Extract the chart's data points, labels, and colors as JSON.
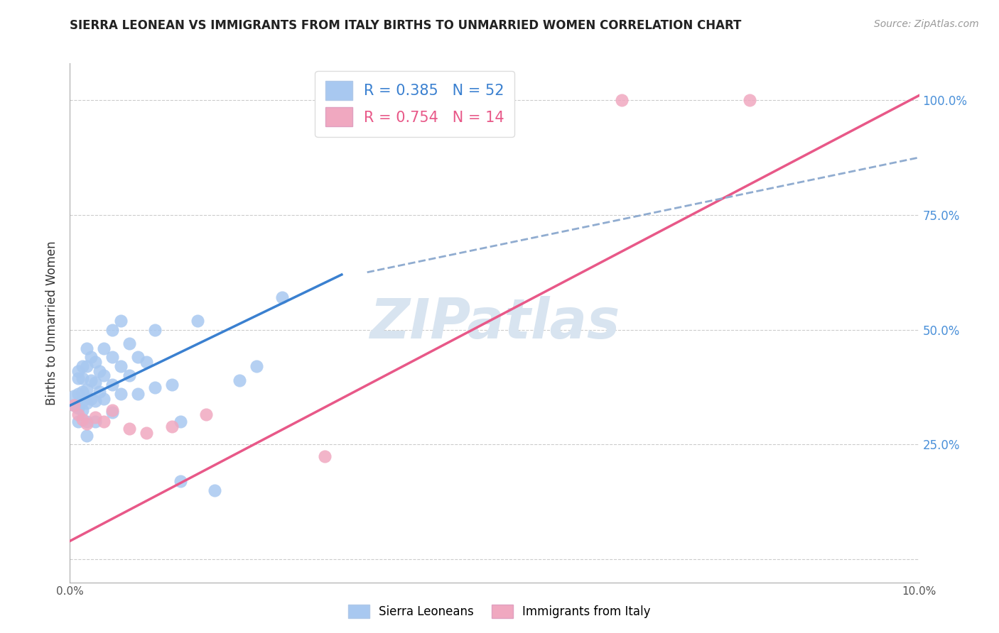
{
  "title": "SIERRA LEONEAN VS IMMIGRANTS FROM ITALY BIRTHS TO UNMARRIED WOMEN CORRELATION CHART",
  "source": "Source: ZipAtlas.com",
  "ylabel": "Births to Unmarried Women",
  "legend_blue_r": "R = 0.385",
  "legend_blue_n": "N = 52",
  "legend_pink_r": "R = 0.754",
  "legend_pink_n": "N = 14",
  "blue_color": "#a8c8f0",
  "pink_color": "#f0a8c0",
  "blue_line_color": "#3a80d0",
  "pink_line_color": "#e85888",
  "dashed_line_color": "#90acd0",
  "watermark_text": "ZIPatlas",
  "watermark_color": "#d8e4f0",
  "xlim": [
    0.0,
    0.1
  ],
  "ylim": [
    -0.05,
    1.08
  ],
  "blue_scatter_x": [
    0.0005,
    0.0005,
    0.001,
    0.001,
    0.001,
    0.001,
    0.001,
    0.0015,
    0.0015,
    0.0015,
    0.0015,
    0.0015,
    0.002,
    0.002,
    0.002,
    0.002,
    0.002,
    0.002,
    0.0025,
    0.0025,
    0.0025,
    0.003,
    0.003,
    0.003,
    0.003,
    0.0035,
    0.0035,
    0.004,
    0.004,
    0.004,
    0.005,
    0.005,
    0.005,
    0.005,
    0.006,
    0.006,
    0.006,
    0.007,
    0.007,
    0.008,
    0.008,
    0.009,
    0.01,
    0.01,
    0.012,
    0.013,
    0.013,
    0.015,
    0.017,
    0.02,
    0.022,
    0.025
  ],
  "blue_scatter_y": [
    0.335,
    0.355,
    0.3,
    0.33,
    0.36,
    0.395,
    0.41,
    0.325,
    0.345,
    0.365,
    0.395,
    0.42,
    0.27,
    0.3,
    0.34,
    0.37,
    0.42,
    0.46,
    0.35,
    0.39,
    0.44,
    0.3,
    0.345,
    0.385,
    0.43,
    0.365,
    0.41,
    0.35,
    0.4,
    0.46,
    0.32,
    0.38,
    0.44,
    0.5,
    0.36,
    0.42,
    0.52,
    0.4,
    0.47,
    0.36,
    0.44,
    0.43,
    0.375,
    0.5,
    0.38,
    0.17,
    0.3,
    0.52,
    0.15,
    0.39,
    0.42,
    0.57
  ],
  "pink_scatter_x": [
    0.0005,
    0.001,
    0.0015,
    0.002,
    0.003,
    0.004,
    0.005,
    0.007,
    0.009,
    0.012,
    0.016,
    0.03,
    0.065,
    0.08
  ],
  "pink_scatter_y": [
    0.335,
    0.315,
    0.305,
    0.295,
    0.31,
    0.3,
    0.325,
    0.285,
    0.275,
    0.29,
    0.315,
    0.225,
    1.0,
    1.0
  ],
  "blue_line_x0": 0.0,
  "blue_line_x1": 0.032,
  "blue_line_y0": 0.335,
  "blue_line_y1": 0.62,
  "pink_line_x0": 0.0,
  "pink_line_x1": 0.1,
  "pink_line_y0": 0.04,
  "pink_line_y1": 1.01,
  "dashed_line_x0": 0.035,
  "dashed_line_x1": 0.1,
  "dashed_line_y0": 0.625,
  "dashed_line_y1": 0.875
}
